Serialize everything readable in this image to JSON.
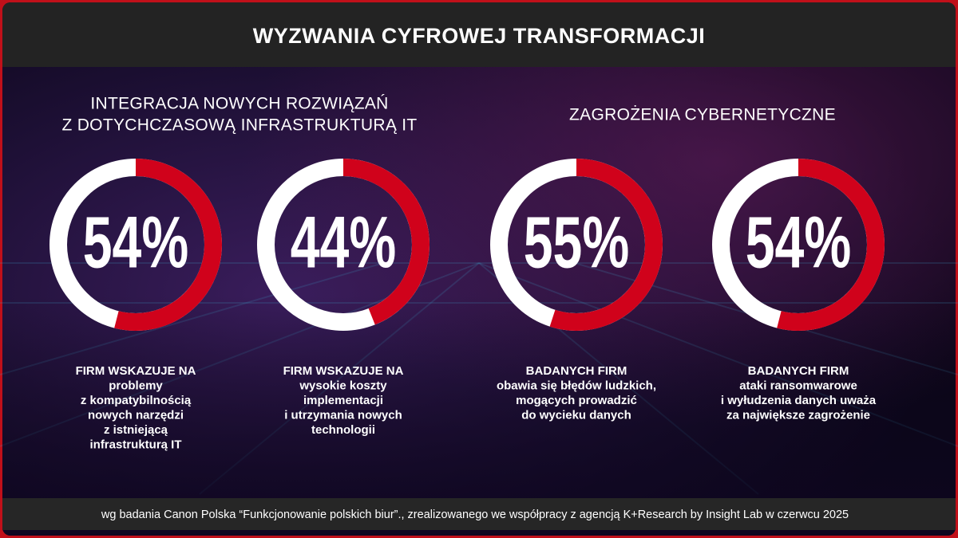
{
  "header": {
    "title": "WYZWANIA CYFROWEJ TRANSFORMACJI"
  },
  "sections": [
    {
      "title": [
        "INTEGRACJA NOWYCH ROZWIĄZAŃ",
        "Z DOTYCHCZASOWĄ INFRASTRUKTURĄ IT"
      ]
    },
    {
      "title": [
        "ZAGROŻENIA CYBERNETYCZNE"
      ]
    }
  ],
  "chart_data": [
    {
      "type": "donut",
      "values": [
        54
      ],
      "value_labels": [
        "54%"
      ],
      "color": "#d0021b",
      "caption": [
        "FIRM WSKAZUJE NA",
        "problemy",
        "z kompatybilnością",
        "nowych narzędzi",
        "z istniejącą",
        "infrastrukturą IT"
      ]
    },
    {
      "type": "donut",
      "values": [
        44
      ],
      "value_labels": [
        "44%"
      ],
      "color": "#d0021b",
      "caption": [
        "FIRM WSKAZUJE NA",
        "wysokie koszty",
        "implementacji",
        "i utrzymania nowych",
        "technologii"
      ]
    },
    {
      "type": "donut",
      "values": [
        55
      ],
      "value_labels": [
        "55%"
      ],
      "color": "#d0021b",
      "caption": [
        "BADANYCH FIRM",
        "obawia się błędów ludzkich,",
        "mogących prowadzić",
        "do wycieku danych"
      ]
    },
    {
      "type": "donut",
      "values": [
        54
      ],
      "value_labels": [
        "54%"
      ],
      "color": "#d0021b",
      "caption": [
        "BADANYCH FIRM",
        "ataki ransomwarowe",
        "i wyłudzenia danych uważa",
        "za największe zagrożenie"
      ]
    }
  ],
  "footer": {
    "source": "wg badania Canon Polska “Funkcjonowanie polskich biur”., zrealizowanego we współpracy z agencją K+Research by Insight Lab w czerwcu 2025"
  }
}
